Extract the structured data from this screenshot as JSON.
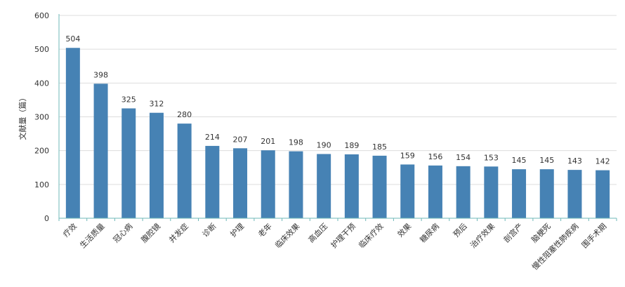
{
  "chart_data": {
    "type": "bar",
    "title": "",
    "xlabel": "",
    "ylabel": "文献量（篇）",
    "ylim": [
      0,
      600
    ],
    "yticks": [
      0,
      100,
      200,
      300,
      400,
      500,
      600
    ],
    "grid": true,
    "categories": [
      "疗效",
      "生活质量",
      "冠心病",
      "腹腔镜",
      "并发症",
      "诊断",
      "护理",
      "老年",
      "临床效果",
      "高血压",
      "护理干预",
      "临床疗效",
      "效果",
      "糖尿病",
      "预后",
      "治疗效果",
      "剖宫产",
      "脑梗死",
      "慢性阻塞性肺疾病",
      "围手术期"
    ],
    "values": [
      504,
      398,
      325,
      312,
      280,
      214,
      207,
      201,
      198,
      190,
      189,
      185,
      159,
      156,
      154,
      153,
      145,
      145,
      143,
      142
    ],
    "colors": {
      "bar": "#4682b4",
      "grid": "#dddddd",
      "axis": "#6fb8b8",
      "text": "#333333"
    }
  }
}
